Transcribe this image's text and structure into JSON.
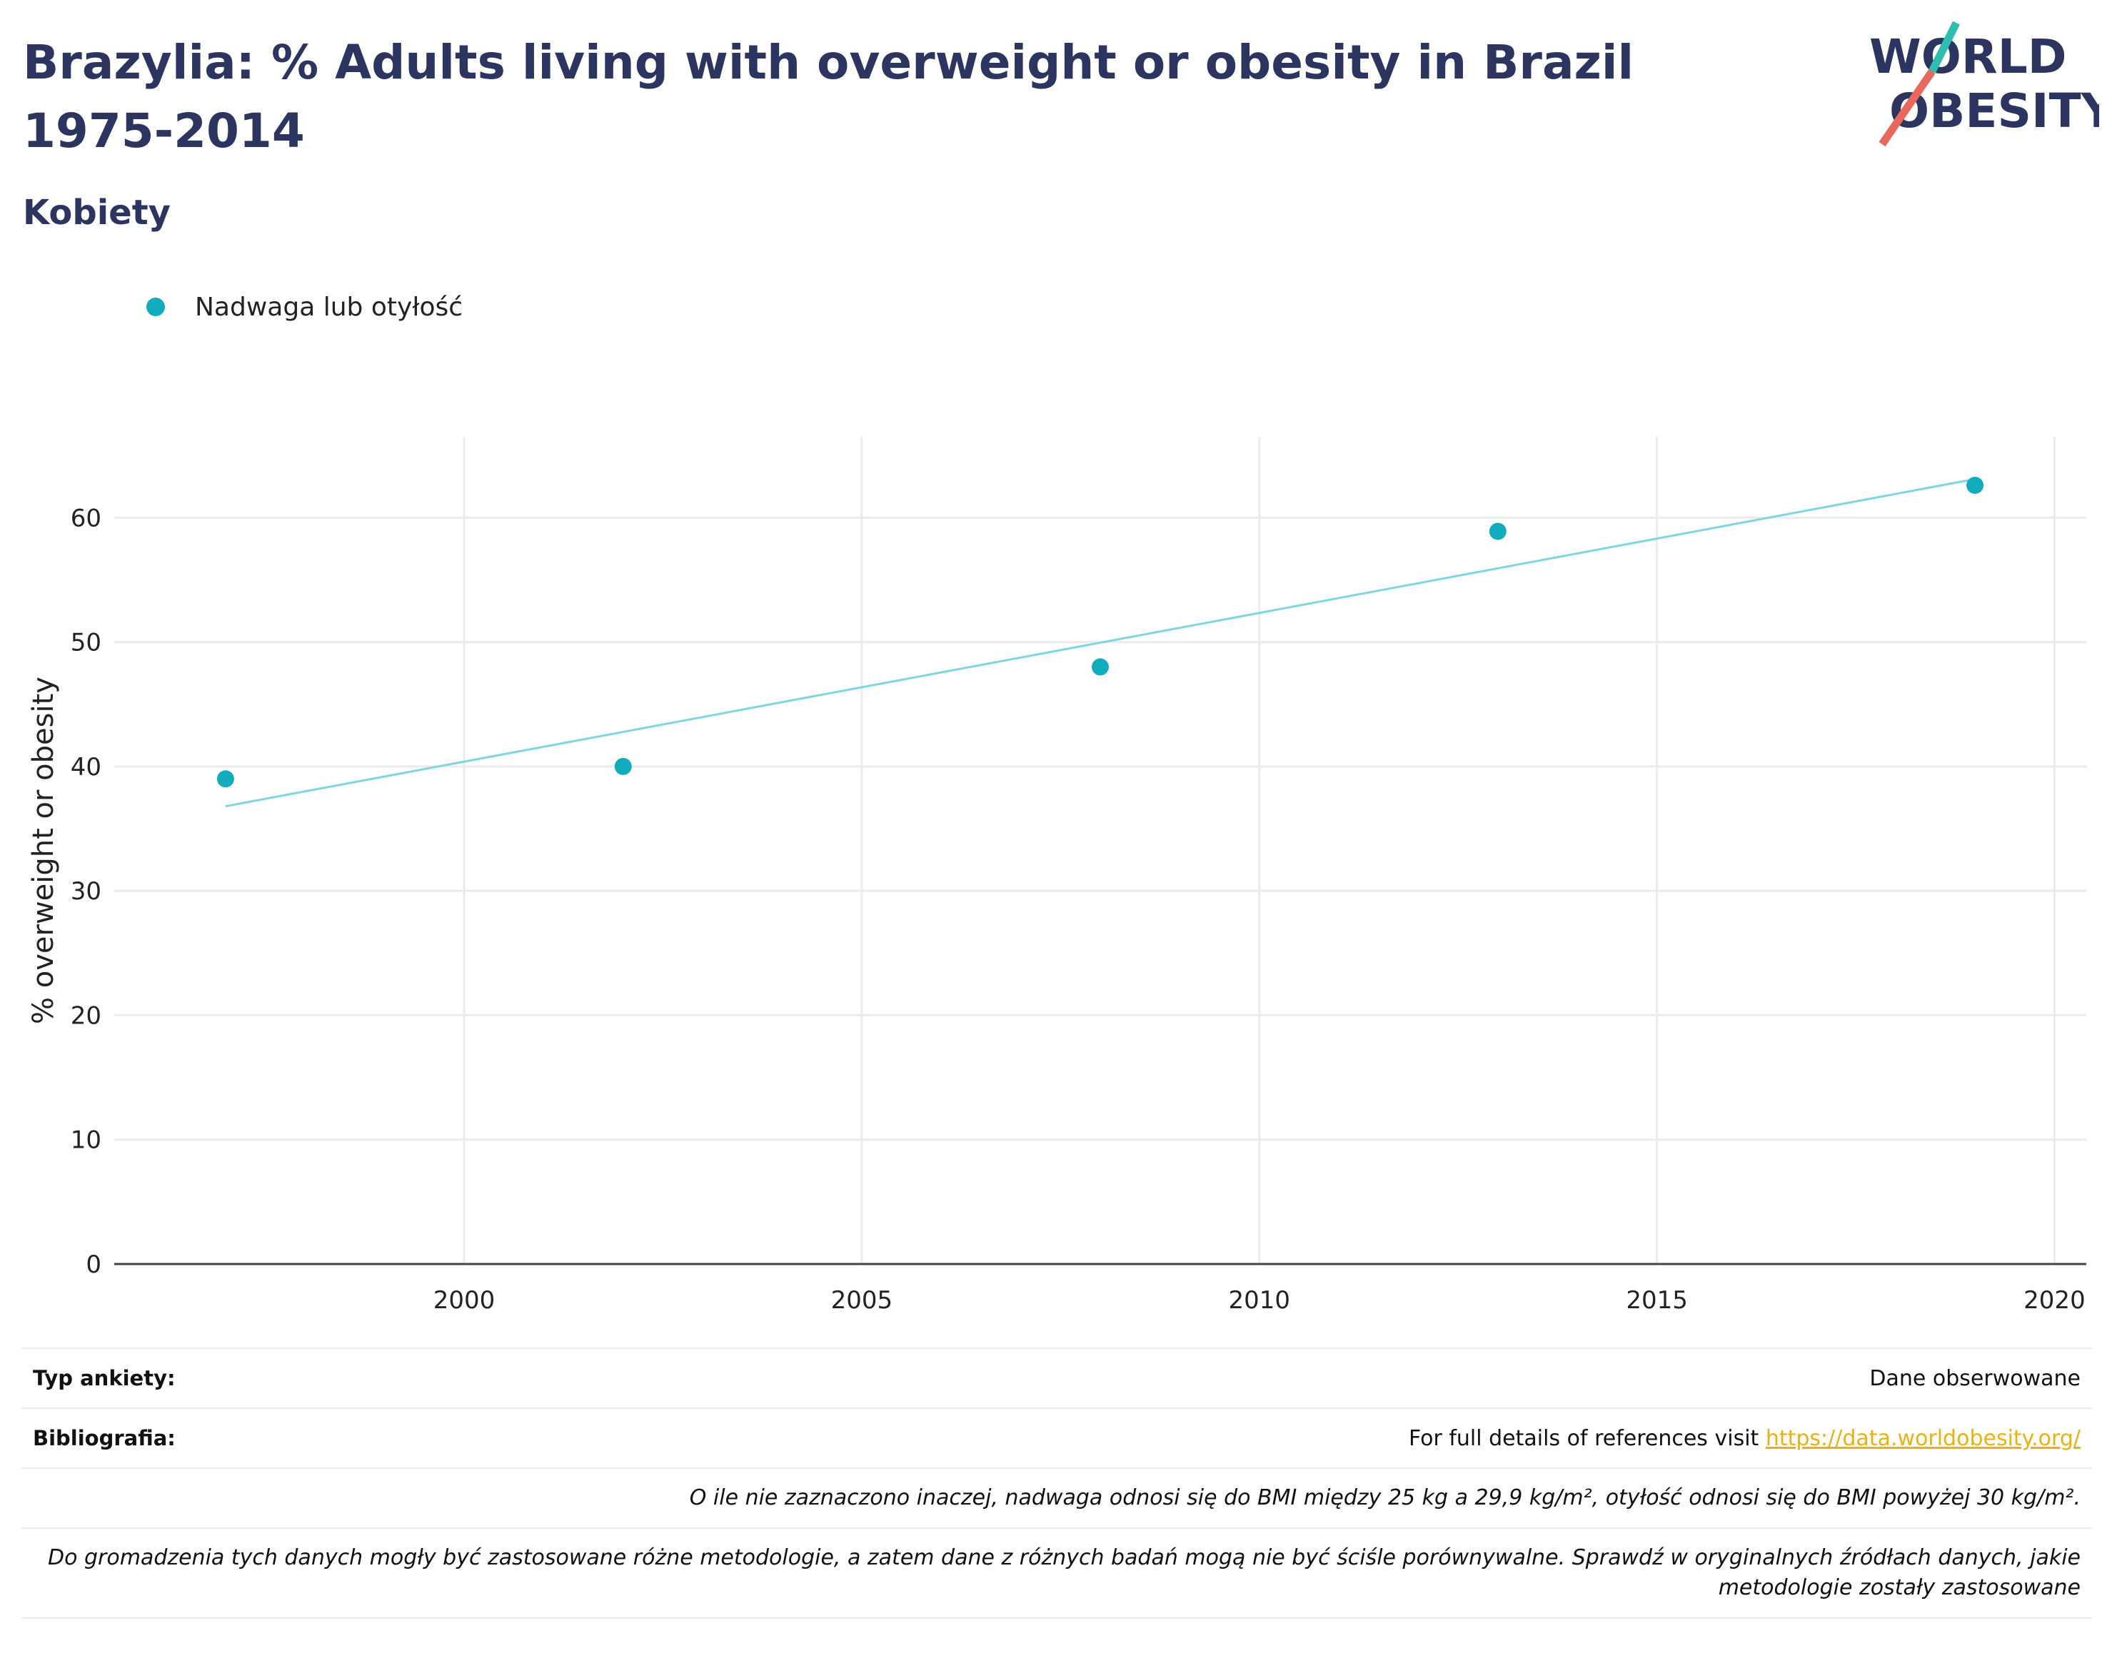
{
  "header": {
    "title": "Brazylia: % Adults living with overweight or obesity in Brazil 1975-2014",
    "subtitle": "Kobiety"
  },
  "logo": {
    "line1": "WORLD",
    "line2": "OBESITY"
  },
  "colors": {
    "title": "#2b3560",
    "series": "#11adbc",
    "trend": "#7ed7dc",
    "link": "#e9b213",
    "logo_teal": "#2fbcb1",
    "logo_red": "#e8695b"
  },
  "chart_data": {
    "type": "scatter",
    "series": [
      {
        "name": "Nadwaga lub otyłość",
        "x": [
          1997,
          2002,
          2008,
          2013,
          2019
        ],
        "y": [
          39,
          40,
          48,
          58.9,
          62.6
        ]
      }
    ],
    "trendline": {
      "x": [
        1997,
        2019
      ],
      "y": [
        36.8,
        63.1
      ]
    },
    "xlim": [
      1995.6,
      2020.4
    ],
    "ylim": [
      0,
      66.5
    ],
    "xticks": [
      2000,
      2005,
      2010,
      2015,
      2020
    ],
    "yticks": [
      0,
      10,
      20,
      30,
      40,
      50,
      60
    ],
    "xlabel": "",
    "ylabel": "% overweight or obesity",
    "grid": true,
    "legend": "top-left"
  },
  "footer": {
    "survey_label": "Typ ankiety:",
    "survey_value": "Dane obserwowane",
    "biblio_label": "Bibliografia:",
    "biblio_text": "For full details of references visit ",
    "biblio_link": "https://data.worldobesity.org/",
    "note1": "O ile nie zaznaczono inaczej, nadwaga odnosi się do BMI między 25 kg a 29,9 kg/m², otyłość odnosi się do BMI powyżej 30 kg/m².",
    "note2": "Do gromadzenia tych danych mogły być zastosowane różne metodologie, a zatem dane z różnych badań mogą nie być ściśle porównywalne. Sprawdź w oryginalnych źródłach danych, jakie metodologie zostały zastosowane"
  }
}
